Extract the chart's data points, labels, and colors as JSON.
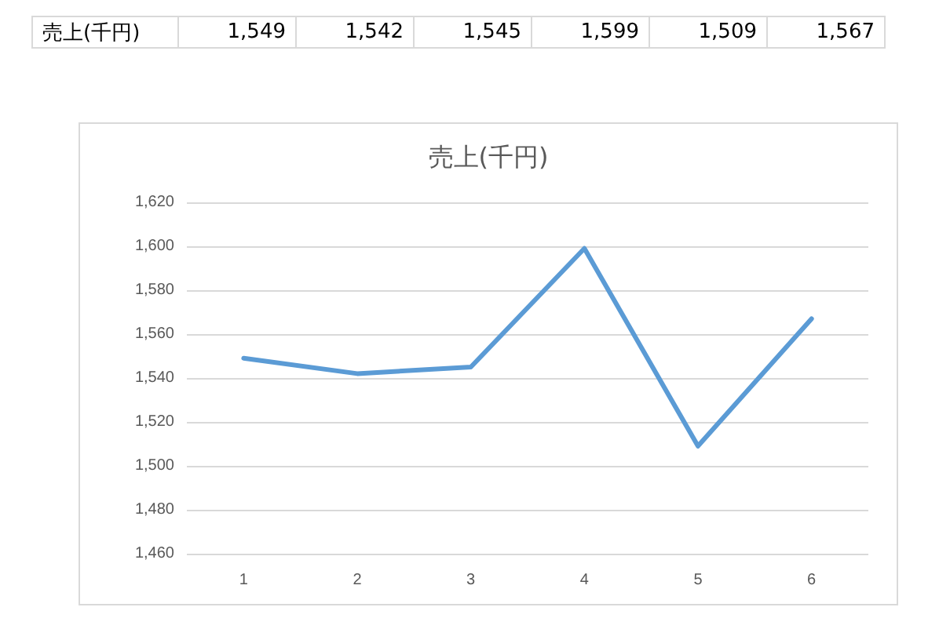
{
  "chart_data": {
    "type": "line",
    "title": "売上(千円)",
    "categories": [
      "1",
      "2",
      "3",
      "4",
      "5",
      "6"
    ],
    "series": [
      {
        "name": "売上(千円)",
        "color": "#5b9bd5",
        "values": [
          1549,
          1542,
          1545,
          1599,
          1509,
          1567
        ],
        "value_labels": [
          "1,549",
          "1,542",
          "1,545",
          "1,599",
          "1,509",
          "1,567"
        ]
      }
    ],
    "ylim": [
      1460,
      1620
    ],
    "yticks": [
      {
        "value": 1460,
        "label": "1,460"
      },
      {
        "value": 1480,
        "label": "1,480"
      },
      {
        "value": 1500,
        "label": "1,500"
      },
      {
        "value": 1520,
        "label": "1,520"
      },
      {
        "value": 1540,
        "label": "1,540"
      },
      {
        "value": 1560,
        "label": "1,560"
      },
      {
        "value": 1580,
        "label": "1,580"
      },
      {
        "value": 1600,
        "label": "1,600"
      },
      {
        "value": 1620,
        "label": "1,620"
      }
    ],
    "grid": "y",
    "legend": false,
    "marker": "none",
    "line_style": "solid"
  }
}
